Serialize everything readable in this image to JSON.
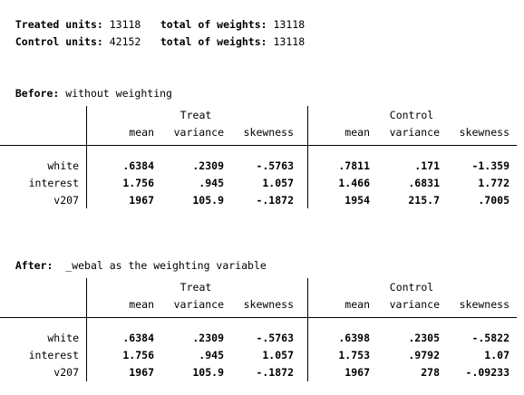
{
  "summary": {
    "treated_label": "Treated units:",
    "treated_count": "13118",
    "treated_weights_label": "total of weights:",
    "treated_weights": "13118",
    "control_label": "Control units:",
    "control_count": "42152",
    "control_weights_label": "total of weights:",
    "control_weights": "13118"
  },
  "before": {
    "heading_label": "Before:",
    "heading_text": "without weighting",
    "group_treat": "Treat",
    "group_control": "Control",
    "columns": [
      "mean",
      "variance",
      "skewness",
      "mean",
      "variance",
      "skewness"
    ],
    "rows": [
      {
        "name": "white",
        "values": [
          ".6384",
          ".2309",
          "-.5763",
          ".7811",
          ".171",
          "-1.359"
        ]
      },
      {
        "name": "interest",
        "values": [
          "1.756",
          ".945",
          "1.057",
          "1.466",
          ".6831",
          "1.772"
        ]
      },
      {
        "name": "v207",
        "values": [
          "1967",
          "105.9",
          "-.1872",
          "1954",
          "215.7",
          ".7005"
        ]
      }
    ]
  },
  "after": {
    "heading_label": "After:",
    "heading_text": "_webal as the weighting variable",
    "group_treat": "Treat",
    "group_control": "Control",
    "columns": [
      "mean",
      "variance",
      "skewness",
      "mean",
      "variance",
      "skewness"
    ],
    "rows": [
      {
        "name": "white",
        "values": [
          ".6384",
          ".2309",
          "-.5763",
          ".6398",
          ".2305",
          "-.5822"
        ]
      },
      {
        "name": "interest",
        "values": [
          "1.756",
          ".945",
          "1.057",
          "1.753",
          ".9792",
          "1.07"
        ]
      },
      {
        "name": "v207",
        "values": [
          "1967",
          "105.9",
          "-.1872",
          "1967",
          "278",
          "-.09233"
        ]
      }
    ]
  }
}
